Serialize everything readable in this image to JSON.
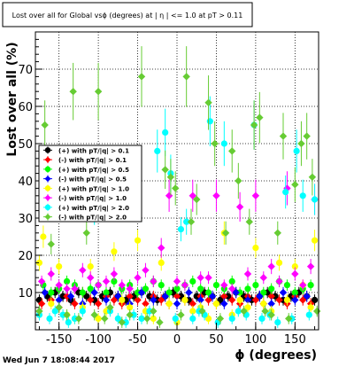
{
  "chart_data": {
    "type": "scatter",
    "title": "Lost over all for Global vsϕ (degrees) at | η | <= 1.0 at pT > 0.11",
    "xlabel": "ϕ (degrees)",
    "ylabel": "Lost over all (%)",
    "xlim": [
      -180,
      180
    ],
    "ylim": [
      0,
      80
    ],
    "xticks": [
      -150,
      -100,
      -50,
      0,
      50,
      100,
      150
    ],
    "yticks": [
      10,
      20,
      30,
      40,
      50,
      60,
      70
    ],
    "grid": true,
    "legend_position": "middle-left",
    "timestamp": "Wed Jun  7 18:08:44 2017",
    "series": [
      {
        "name": "(+) with pT/|q| > 0.1",
        "color": "#000000",
        "marker": "circle",
        "points": [
          [
            -175,
            8
          ],
          [
            -165,
            9
          ],
          [
            -155,
            10
          ],
          [
            -145,
            9
          ],
          [
            -135,
            8
          ],
          [
            -125,
            10
          ],
          [
            -115,
            9
          ],
          [
            -105,
            8
          ],
          [
            -95,
            9
          ],
          [
            -85,
            10
          ],
          [
            -75,
            9
          ],
          [
            -65,
            8
          ],
          [
            -55,
            9
          ],
          [
            -45,
            10
          ],
          [
            -35,
            9
          ],
          [
            -25,
            8
          ],
          [
            -15,
            9
          ],
          [
            -5,
            10
          ],
          [
            5,
            9
          ],
          [
            15,
            8
          ],
          [
            25,
            9
          ],
          [
            35,
            10
          ],
          [
            45,
            9
          ],
          [
            55,
            8
          ],
          [
            65,
            9
          ],
          [
            75,
            10
          ],
          [
            85,
            9
          ],
          [
            95,
            8
          ],
          [
            105,
            9
          ],
          [
            115,
            10
          ],
          [
            125,
            9
          ],
          [
            135,
            8
          ],
          [
            145,
            9
          ],
          [
            155,
            10
          ],
          [
            165,
            9
          ],
          [
            175,
            8
          ]
        ]
      },
      {
        "name": "(-) with pT/|q| > 0.1",
        "color": "#ff0000",
        "marker": "diamond",
        "points": [
          [
            -172,
            7
          ],
          [
            -160,
            8
          ],
          [
            -150,
            6
          ],
          [
            -140,
            9
          ],
          [
            -130,
            7
          ],
          [
            -120,
            10
          ],
          [
            -110,
            8
          ],
          [
            -100,
            7
          ],
          [
            -90,
            9
          ],
          [
            -80,
            8
          ],
          [
            -70,
            7
          ],
          [
            -60,
            9
          ],
          [
            -50,
            8
          ],
          [
            -40,
            7
          ],
          [
            -30,
            9
          ],
          [
            -20,
            8
          ],
          [
            -10,
            7
          ],
          [
            0,
            9
          ],
          [
            10,
            8
          ],
          [
            20,
            7
          ],
          [
            30,
            9
          ],
          [
            40,
            8
          ],
          [
            50,
            7
          ],
          [
            60,
            9
          ],
          [
            70,
            8
          ],
          [
            80,
            7
          ],
          [
            90,
            9
          ],
          [
            100,
            8
          ],
          [
            110,
            7
          ],
          [
            120,
            9
          ],
          [
            130,
            8
          ],
          [
            140,
            7
          ],
          [
            150,
            9
          ],
          [
            160,
            8
          ],
          [
            170,
            7
          ]
        ]
      },
      {
        "name": "(+) with pT/|q| > 0.5",
        "color": "#00ff00",
        "marker": "circle",
        "points": [
          [
            -170,
            12
          ],
          [
            -160,
            10
          ],
          [
            -150,
            11
          ],
          [
            -140,
            13
          ],
          [
            -130,
            12
          ],
          [
            -120,
            10
          ],
          [
            -110,
            11
          ],
          [
            -100,
            12
          ],
          [
            -90,
            10
          ],
          [
            -80,
            13
          ],
          [
            -70,
            11
          ],
          [
            -60,
            12
          ],
          [
            -50,
            10
          ],
          [
            -40,
            11
          ],
          [
            -30,
            13
          ],
          [
            -20,
            12
          ],
          [
            -10,
            10
          ],
          [
            0,
            11
          ],
          [
            10,
            12
          ],
          [
            20,
            13
          ],
          [
            30,
            11
          ],
          [
            40,
            10
          ],
          [
            50,
            12
          ],
          [
            60,
            11
          ],
          [
            70,
            13
          ],
          [
            80,
            10
          ],
          [
            90,
            11
          ],
          [
            100,
            12
          ],
          [
            110,
            10
          ],
          [
            120,
            11
          ],
          [
            130,
            13
          ],
          [
            140,
            12
          ],
          [
            150,
            10
          ],
          [
            160,
            11
          ],
          [
            170,
            12
          ]
        ]
      },
      {
        "name": "(-) with pT/|q| > 0.5",
        "color": "#0000ff",
        "marker": "diamond",
        "points": [
          [
            -168,
            10
          ],
          [
            -150,
            8
          ],
          [
            -135,
            9
          ],
          [
            -120,
            7
          ],
          [
            -105,
            10
          ],
          [
            -90,
            8
          ],
          [
            -75,
            9
          ],
          [
            -60,
            7
          ],
          [
            -45,
            10
          ],
          [
            -30,
            8
          ],
          [
            -15,
            9
          ],
          [
            0,
            7
          ],
          [
            15,
            10
          ],
          [
            30,
            8
          ],
          [
            45,
            9
          ],
          [
            60,
            7
          ],
          [
            75,
            10
          ],
          [
            90,
            8
          ],
          [
            105,
            9
          ],
          [
            120,
            7
          ],
          [
            135,
            10
          ],
          [
            150,
            8
          ],
          [
            165,
            9
          ]
        ]
      },
      {
        "name": "(+) with pT/|q| > 1.0",
        "color": "#ffff00",
        "marker": "circle",
        "points": [
          [
            -175,
            18
          ],
          [
            -170,
            25
          ],
          [
            -160,
            7
          ],
          [
            -150,
            17
          ],
          [
            -140,
            4
          ],
          [
            -130,
            3
          ],
          [
            -120,
            6
          ],
          [
            -110,
            17
          ],
          [
            -100,
            3
          ],
          [
            -90,
            5
          ],
          [
            -80,
            21
          ],
          [
            -70,
            8
          ],
          [
            -60,
            6
          ],
          [
            -50,
            24
          ],
          [
            -40,
            5
          ],
          [
            -30,
            3
          ],
          [
            -20,
            18
          ],
          [
            -10,
            7
          ],
          [
            0,
            2
          ],
          [
            10,
            8
          ],
          [
            20,
            5
          ],
          [
            30,
            6
          ],
          [
            40,
            3
          ],
          [
            50,
            7
          ],
          [
            60,
            26
          ],
          [
            70,
            4
          ],
          [
            80,
            8
          ],
          [
            90,
            6
          ],
          [
            100,
            22
          ],
          [
            110,
            7
          ],
          [
            120,
            5
          ],
          [
            130,
            18
          ],
          [
            140,
            8
          ],
          [
            150,
            17
          ],
          [
            160,
            12
          ],
          [
            170,
            6
          ],
          [
            175,
            24
          ]
        ]
      },
      {
        "name": "(-) with pT/|q| > 1.0",
        "color": "#ff00ff",
        "marker": "diamond",
        "points": [
          [
            -172,
            13
          ],
          [
            -160,
            15
          ],
          [
            -150,
            12
          ],
          [
            -140,
            11
          ],
          [
            -130,
            11
          ],
          [
            -120,
            16
          ],
          [
            -110,
            14
          ],
          [
            -100,
            12
          ],
          [
            -90,
            13
          ],
          [
            -80,
            15
          ],
          [
            -70,
            12
          ],
          [
            -60,
            11
          ],
          [
            -50,
            14
          ],
          [
            -40,
            16
          ],
          [
            -30,
            13
          ],
          [
            -20,
            22
          ],
          [
            -10,
            36
          ],
          [
            0,
            13
          ],
          [
            10,
            12
          ],
          [
            20,
            36
          ],
          [
            30,
            14
          ],
          [
            40,
            14
          ],
          [
            50,
            36
          ],
          [
            60,
            12
          ],
          [
            70,
            11
          ],
          [
            80,
            33
          ],
          [
            90,
            15
          ],
          [
            100,
            36
          ],
          [
            110,
            14
          ],
          [
            120,
            17
          ],
          [
            130,
            13
          ],
          [
            140,
            38
          ],
          [
            150,
            15
          ],
          [
            160,
            12
          ],
          [
            170,
            17
          ],
          [
            175,
            35
          ]
        ]
      },
      {
        "name": "(+) with pT/|q| > 2.0",
        "color": "#00ffff",
        "marker": "circle",
        "points": [
          [
            -175,
            4
          ],
          [
            -170,
            33
          ],
          [
            -162,
            3
          ],
          [
            -155,
            5
          ],
          [
            -145,
            4
          ],
          [
            -138,
            2
          ],
          [
            -130,
            3
          ],
          [
            -120,
            5
          ],
          [
            -113,
            36
          ],
          [
            -105,
            32
          ],
          [
            -95,
            34
          ],
          [
            -85,
            5
          ],
          [
            -75,
            3
          ],
          [
            -65,
            2
          ],
          [
            -55,
            4
          ],
          [
            -45,
            3
          ],
          [
            -35,
            5
          ],
          [
            -25,
            48
          ],
          [
            -15,
            53
          ],
          [
            -8,
            42
          ],
          [
            -2,
            3
          ],
          [
            5,
            27
          ],
          [
            12,
            29
          ],
          [
            20,
            3
          ],
          [
            28,
            5
          ],
          [
            35,
            4
          ],
          [
            42,
            56
          ],
          [
            52,
            2
          ],
          [
            60,
            50
          ],
          [
            70,
            3
          ],
          [
            78,
            5
          ],
          [
            88,
            4
          ],
          [
            98,
            55
          ],
          [
            108,
            3
          ],
          [
            118,
            4
          ],
          [
            128,
            2
          ],
          [
            138,
            37
          ],
          [
            146,
            3
          ],
          [
            152,
            48
          ],
          [
            160,
            36
          ],
          [
            168,
            4
          ],
          [
            175,
            35
          ]
        ]
      },
      {
        "name": "(-) with pT/|q| > 2.0",
        "color": "#66cc33",
        "marker": "diamond",
        "points": [
          [
            -175,
            5
          ],
          [
            -168,
            55
          ],
          [
            -160,
            23
          ],
          [
            -150,
            6
          ],
          [
            -140,
            4
          ],
          [
            -132,
            64
          ],
          [
            -125,
            3
          ],
          [
            -115,
            26
          ],
          [
            -105,
            4
          ],
          [
            -100,
            64
          ],
          [
            -92,
            3
          ],
          [
            -85,
            6
          ],
          [
            -78,
            34
          ],
          [
            -70,
            2
          ],
          [
            -60,
            4
          ],
          [
            -52,
            35
          ],
          [
            -45,
            68
          ],
          [
            -38,
            3
          ],
          [
            -30,
            5
          ],
          [
            -22,
            2
          ],
          [
            -15,
            43
          ],
          [
            -8,
            41
          ],
          [
            -2,
            38
          ],
          [
            5,
            4
          ],
          [
            12,
            68
          ],
          [
            18,
            29
          ],
          [
            25,
            35
          ],
          [
            32,
            5
          ],
          [
            40,
            61
          ],
          [
            48,
            50
          ],
          [
            55,
            3
          ],
          [
            62,
            26
          ],
          [
            70,
            48
          ],
          [
            78,
            40
          ],
          [
            85,
            5
          ],
          [
            92,
            29
          ],
          [
            98,
            55
          ],
          [
            105,
            57
          ],
          [
            112,
            5
          ],
          [
            120,
            4
          ],
          [
            128,
            26
          ],
          [
            135,
            52
          ],
          [
            142,
            3
          ],
          [
            150,
            39
          ],
          [
            158,
            50
          ],
          [
            165,
            52
          ],
          [
            172,
            41
          ],
          [
            178,
            5
          ]
        ]
      }
    ]
  }
}
